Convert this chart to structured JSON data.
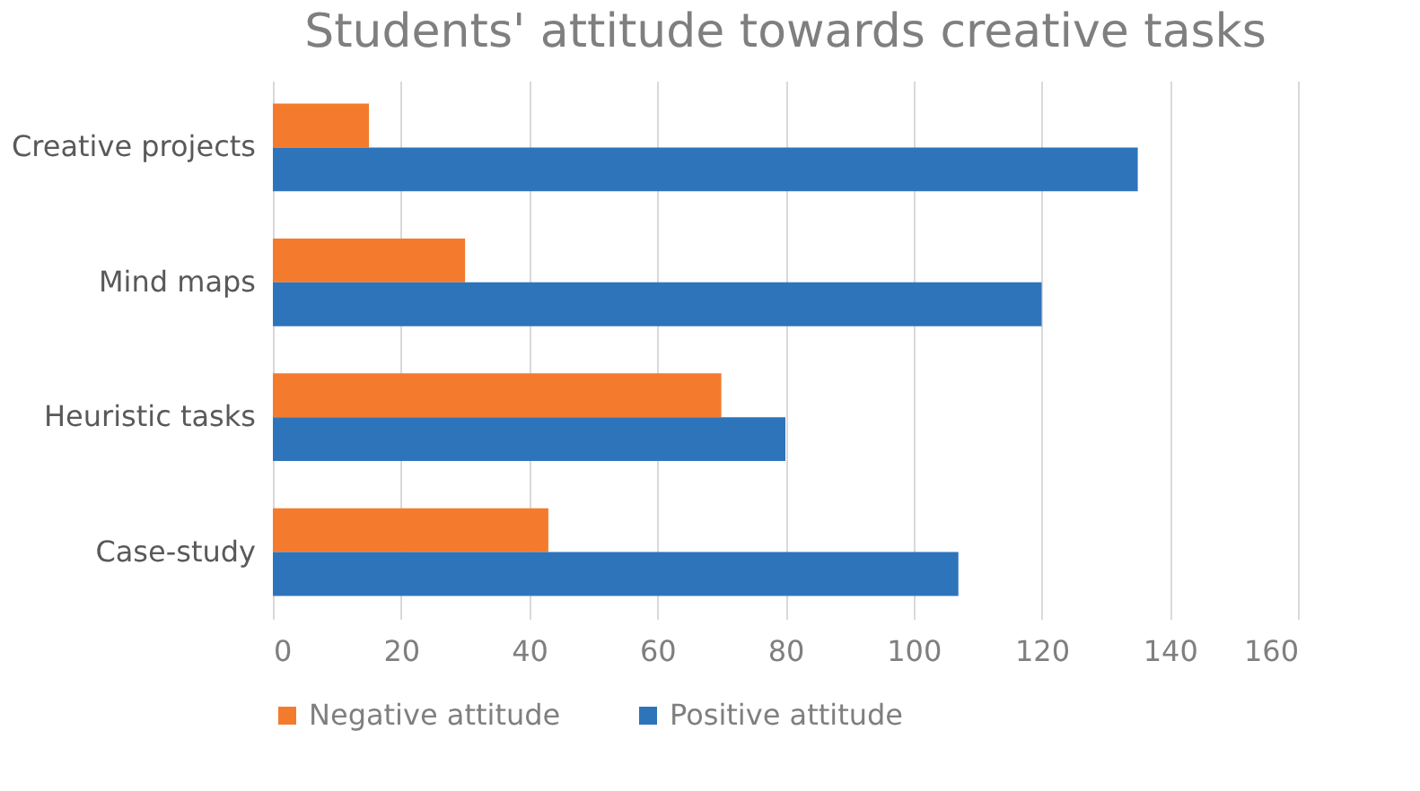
{
  "chart_data": {
    "type": "bar",
    "orientation": "horizontal",
    "title": "Students' attitude towards creative tasks",
    "categories": [
      "Creative projects",
      "Mind maps",
      "Heuristic tasks",
      "Case-study"
    ],
    "series": [
      {
        "name": "Negative attitude",
        "color": "#f47b2d",
        "values": [
          15,
          30,
          70,
          43
        ]
      },
      {
        "name": "Positive attitude",
        "color": "#2e74bb",
        "values": [
          135,
          120,
          80,
          107
        ]
      }
    ],
    "xlim": [
      0,
      160
    ],
    "xticks": [
      0,
      20,
      40,
      60,
      80,
      100,
      120,
      140,
      160
    ],
    "grid": "x",
    "legend": "bottom"
  }
}
